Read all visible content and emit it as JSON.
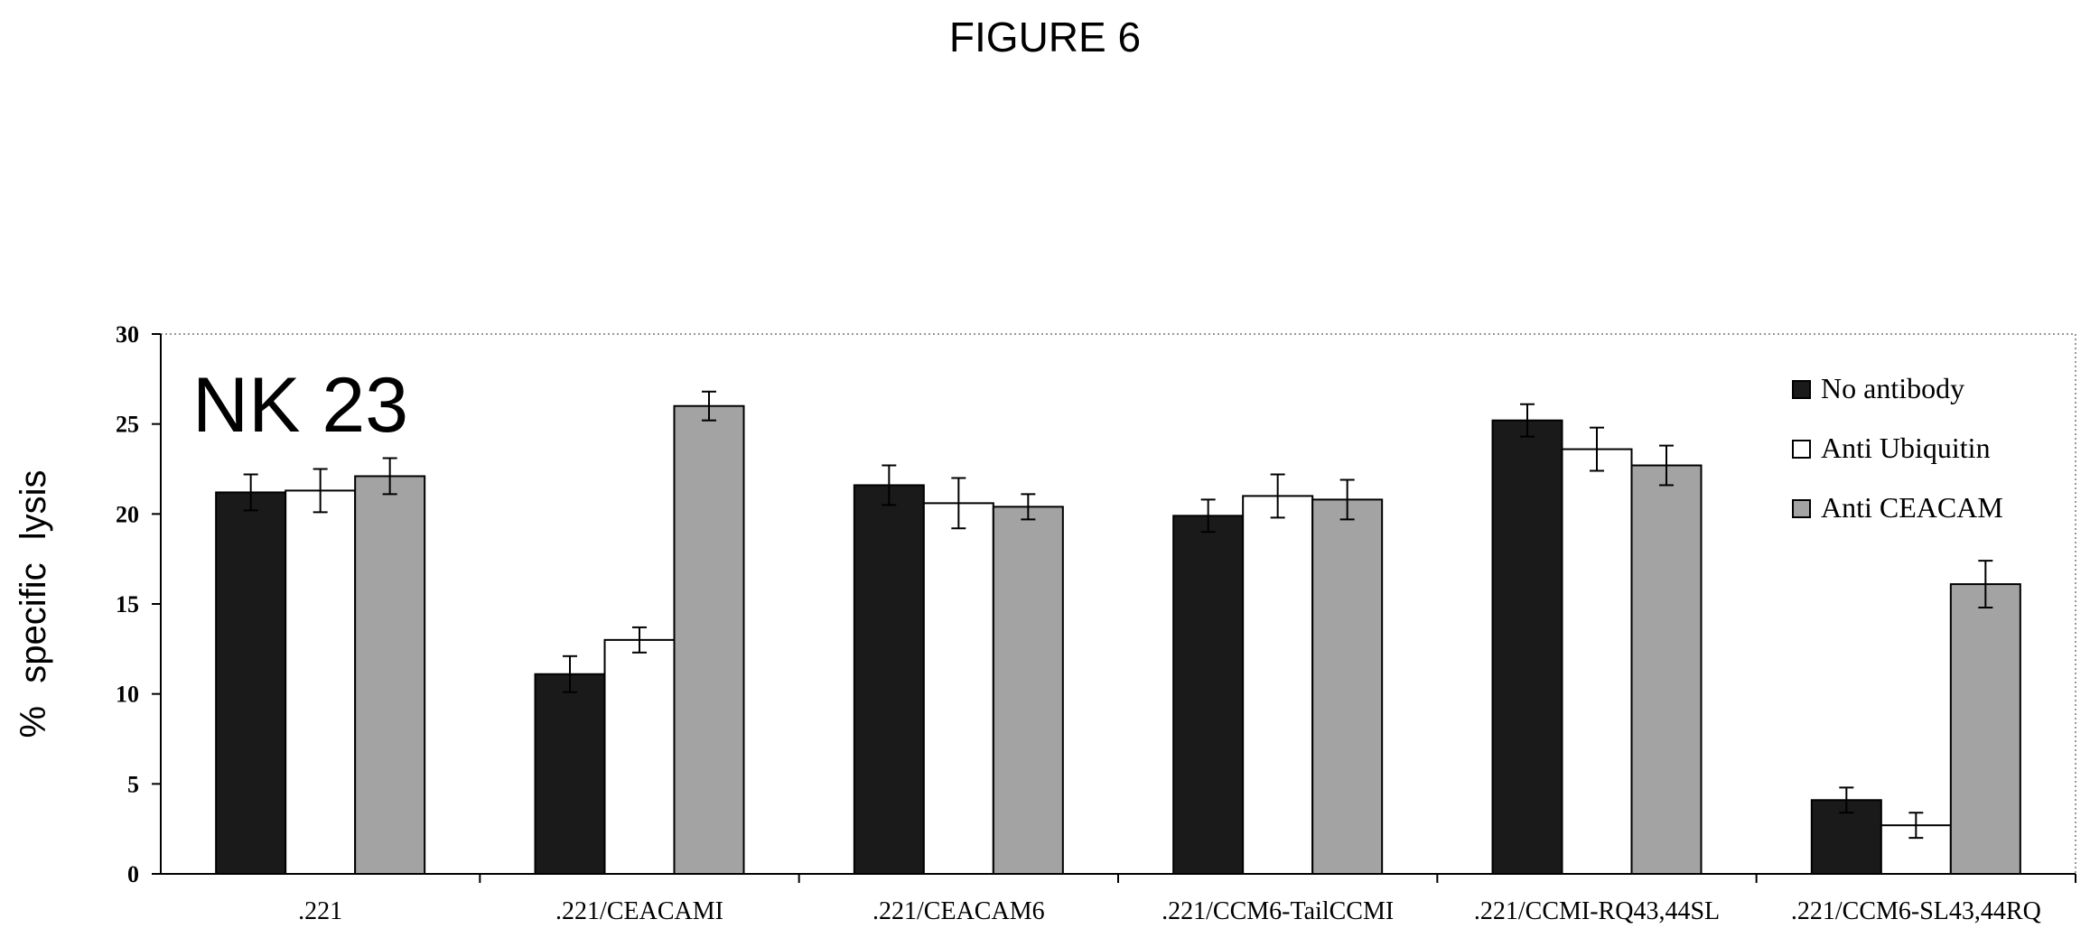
{
  "figure_title": "FIGURE 6",
  "chart_data": {
    "type": "bar",
    "title": "FIGURE 6",
    "panel_label": "NK 23",
    "xlabel": "",
    "ylabel": "% specific lysis",
    "ylim": [
      0,
      30
    ],
    "yticks": [
      "0",
      "5",
      "10",
      "15",
      "20",
      "25",
      "30"
    ],
    "categories": [
      ".221",
      ".221/CEACAMI",
      ".221/CEACAM6",
      ".221/CCM6-TailCCMI",
      ".221/CCMI-RQ43,44SL",
      ".221/CCM6-SL43,44RQ"
    ],
    "series": [
      {
        "name": "No antibody",
        "color": "#1a1a1a",
        "values": [
          21.2,
          11.1,
          21.6,
          19.9,
          25.2,
          4.1
        ],
        "errors": [
          1.0,
          1.0,
          1.1,
          0.9,
          0.9,
          0.7
        ]
      },
      {
        "name": "Anti Ubiquitin",
        "color": "#ffffff",
        "values": [
          21.3,
          13.0,
          20.6,
          21.0,
          23.6,
          2.7
        ],
        "errors": [
          1.2,
          0.7,
          1.4,
          1.2,
          1.2,
          0.7
        ]
      },
      {
        "name": "Anti CEACAM",
        "color": "#a3a3a3",
        "values": [
          22.1,
          26.0,
          20.4,
          20.8,
          22.7,
          16.1
        ],
        "errors": [
          1.0,
          0.8,
          0.7,
          1.1,
          1.1,
          1.3
        ]
      }
    ],
    "legend_position": "top-right",
    "grid": false
  }
}
